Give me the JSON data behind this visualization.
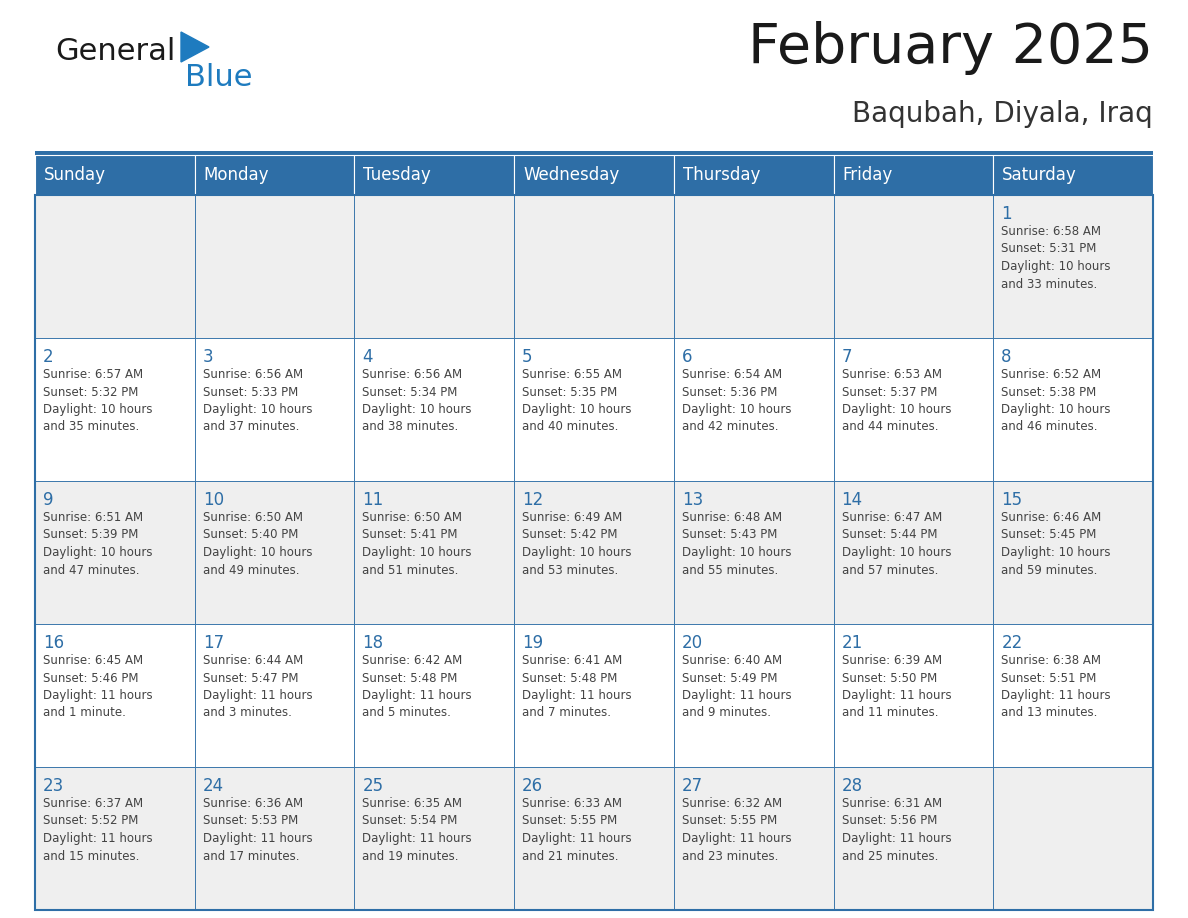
{
  "title": "February 2025",
  "subtitle": "Baqubah, Diyala, Iraq",
  "days_of_week": [
    "Sunday",
    "Monday",
    "Tuesday",
    "Wednesday",
    "Thursday",
    "Friday",
    "Saturday"
  ],
  "header_bg": "#2E6EA6",
  "header_text": "#FFFFFF",
  "cell_bg_light": "#EFEFEF",
  "cell_bg_white": "#FFFFFF",
  "cell_text": "#444444",
  "day_num_color": "#2E6EA6",
  "border_color": "#2E6EA6",
  "grid_color": "#BBBBBB",
  "title_color": "#1A1A1A",
  "subtitle_color": "#333333",
  "logo_general_color": "#1A1A1A",
  "logo_blue_color": "#1E7BBF",
  "logo_triangle_color": "#1E7BBF",
  "weeks": [
    [
      {
        "day": null,
        "info": null
      },
      {
        "day": null,
        "info": null
      },
      {
        "day": null,
        "info": null
      },
      {
        "day": null,
        "info": null
      },
      {
        "day": null,
        "info": null
      },
      {
        "day": null,
        "info": null
      },
      {
        "day": 1,
        "info": "Sunrise: 6:58 AM\nSunset: 5:31 PM\nDaylight: 10 hours\nand 33 minutes."
      }
    ],
    [
      {
        "day": 2,
        "info": "Sunrise: 6:57 AM\nSunset: 5:32 PM\nDaylight: 10 hours\nand 35 minutes."
      },
      {
        "day": 3,
        "info": "Sunrise: 6:56 AM\nSunset: 5:33 PM\nDaylight: 10 hours\nand 37 minutes."
      },
      {
        "day": 4,
        "info": "Sunrise: 6:56 AM\nSunset: 5:34 PM\nDaylight: 10 hours\nand 38 minutes."
      },
      {
        "day": 5,
        "info": "Sunrise: 6:55 AM\nSunset: 5:35 PM\nDaylight: 10 hours\nand 40 minutes."
      },
      {
        "day": 6,
        "info": "Sunrise: 6:54 AM\nSunset: 5:36 PM\nDaylight: 10 hours\nand 42 minutes."
      },
      {
        "day": 7,
        "info": "Sunrise: 6:53 AM\nSunset: 5:37 PM\nDaylight: 10 hours\nand 44 minutes."
      },
      {
        "day": 8,
        "info": "Sunrise: 6:52 AM\nSunset: 5:38 PM\nDaylight: 10 hours\nand 46 minutes."
      }
    ],
    [
      {
        "day": 9,
        "info": "Sunrise: 6:51 AM\nSunset: 5:39 PM\nDaylight: 10 hours\nand 47 minutes."
      },
      {
        "day": 10,
        "info": "Sunrise: 6:50 AM\nSunset: 5:40 PM\nDaylight: 10 hours\nand 49 minutes."
      },
      {
        "day": 11,
        "info": "Sunrise: 6:50 AM\nSunset: 5:41 PM\nDaylight: 10 hours\nand 51 minutes."
      },
      {
        "day": 12,
        "info": "Sunrise: 6:49 AM\nSunset: 5:42 PM\nDaylight: 10 hours\nand 53 minutes."
      },
      {
        "day": 13,
        "info": "Sunrise: 6:48 AM\nSunset: 5:43 PM\nDaylight: 10 hours\nand 55 minutes."
      },
      {
        "day": 14,
        "info": "Sunrise: 6:47 AM\nSunset: 5:44 PM\nDaylight: 10 hours\nand 57 minutes."
      },
      {
        "day": 15,
        "info": "Sunrise: 6:46 AM\nSunset: 5:45 PM\nDaylight: 10 hours\nand 59 minutes."
      }
    ],
    [
      {
        "day": 16,
        "info": "Sunrise: 6:45 AM\nSunset: 5:46 PM\nDaylight: 11 hours\nand 1 minute."
      },
      {
        "day": 17,
        "info": "Sunrise: 6:44 AM\nSunset: 5:47 PM\nDaylight: 11 hours\nand 3 minutes."
      },
      {
        "day": 18,
        "info": "Sunrise: 6:42 AM\nSunset: 5:48 PM\nDaylight: 11 hours\nand 5 minutes."
      },
      {
        "day": 19,
        "info": "Sunrise: 6:41 AM\nSunset: 5:48 PM\nDaylight: 11 hours\nand 7 minutes."
      },
      {
        "day": 20,
        "info": "Sunrise: 6:40 AM\nSunset: 5:49 PM\nDaylight: 11 hours\nand 9 minutes."
      },
      {
        "day": 21,
        "info": "Sunrise: 6:39 AM\nSunset: 5:50 PM\nDaylight: 11 hours\nand 11 minutes."
      },
      {
        "day": 22,
        "info": "Sunrise: 6:38 AM\nSunset: 5:51 PM\nDaylight: 11 hours\nand 13 minutes."
      }
    ],
    [
      {
        "day": 23,
        "info": "Sunrise: 6:37 AM\nSunset: 5:52 PM\nDaylight: 11 hours\nand 15 minutes."
      },
      {
        "day": 24,
        "info": "Sunrise: 6:36 AM\nSunset: 5:53 PM\nDaylight: 11 hours\nand 17 minutes."
      },
      {
        "day": 25,
        "info": "Sunrise: 6:35 AM\nSunset: 5:54 PM\nDaylight: 11 hours\nand 19 minutes."
      },
      {
        "day": 26,
        "info": "Sunrise: 6:33 AM\nSunset: 5:55 PM\nDaylight: 11 hours\nand 21 minutes."
      },
      {
        "day": 27,
        "info": "Sunrise: 6:32 AM\nSunset: 5:55 PM\nDaylight: 11 hours\nand 23 minutes."
      },
      {
        "day": 28,
        "info": "Sunrise: 6:31 AM\nSunset: 5:56 PM\nDaylight: 11 hours\nand 25 minutes."
      },
      {
        "day": null,
        "info": null
      }
    ]
  ]
}
